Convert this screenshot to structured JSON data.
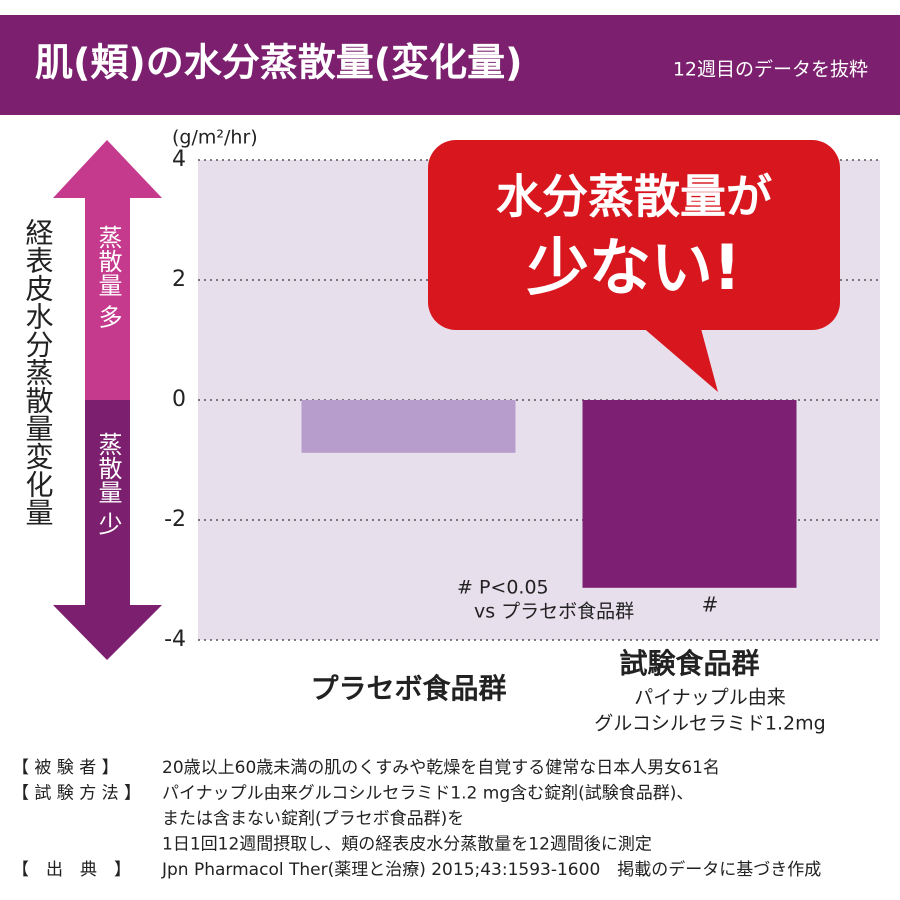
{
  "chart_data": {
    "type": "bar",
    "title": "肌(頬)の水分蒸散量(変化量)",
    "subtitle": "12週目のデータを抜粋",
    "y_unit": "(g/m²/hr)",
    "y_label": "経表皮水分蒸散量変化量",
    "arrow_labels": [
      "蒸散量 多",
      "蒸散量 少"
    ],
    "categories": [
      "プラセボ食品群",
      "試験食品群"
    ],
    "category_details": [
      "パイナップル由来",
      "グルコシルセラミド1.2mg"
    ],
    "values": [
      -0.88,
      -3.13
    ],
    "colors": [
      "#b79dcb",
      "#7d1f72"
    ],
    "ylim": [
      -4,
      4
    ],
    "yticks": [
      -4,
      -2,
      0,
      2,
      4
    ],
    "grid": true,
    "significance_note": [
      "# P<0.05",
      "vs プラセボ食品群"
    ],
    "significance_mark": "#",
    "callout": [
      "水分蒸散量が",
      "少ない!"
    ],
    "footnotes": [
      {
        "label": "【 被 験 者 】",
        "lines": [
          "20歳以上60歳未満の肌のくすみや乾燥を自覚する健常な日本人男女61名"
        ]
      },
      {
        "label": "【 試 験 方 法 】",
        "lines": [
          "パイナップル由来グルコシルセラミド1.2 mg含む錠剤(試験食品群)、",
          "または含まない錠剤(プラセボ食品群)を",
          "1日1回12週間摂取し、頬の経表皮水分蒸散量を12週間後に測定"
        ]
      },
      {
        "label": "【　出　典　】",
        "lines": [
          "Jpn Pharmacol Ther(薬理と治療) 2015;43:1593-1600　掲載のデータに基づき作成"
        ]
      }
    ]
  }
}
